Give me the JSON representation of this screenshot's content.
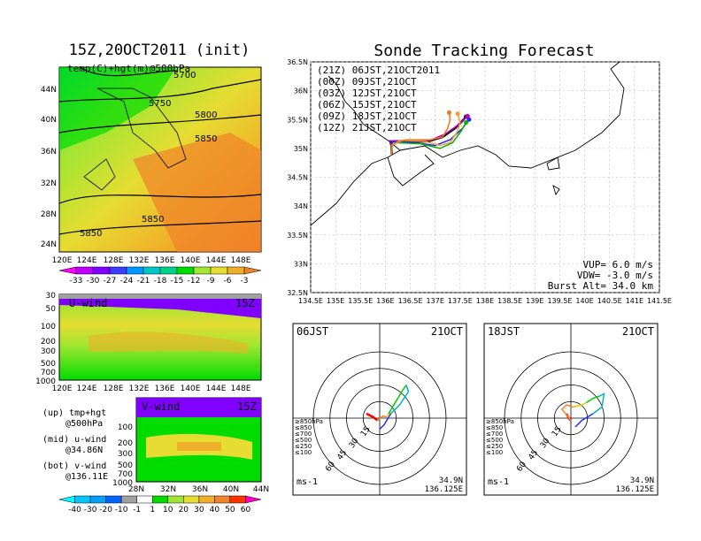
{
  "left": {
    "title": "15Z,20OCT2011 (init)",
    "map_label": "temp(C)+hgt(m)@500hPa",
    "lat_ticks": [
      "44N",
      "40N",
      "36N",
      "32N",
      "28N",
      "24N"
    ],
    "lon_ticks": [
      "120E",
      "124E",
      "128E",
      "132E",
      "136E",
      "140E",
      "144E",
      "148E"
    ],
    "contour_labels": [
      "5700",
      "5750",
      "5800",
      "5850",
      "5850",
      "5850"
    ],
    "temp_colorbar": [
      "-33",
      "-30",
      "-27",
      "-24",
      "-21",
      "-18",
      "-15",
      "-12",
      "-9",
      "-6",
      "-3"
    ],
    "temp_colors": [
      "#ff00ff",
      "#c000ff",
      "#8000ff",
      "#3c3cff",
      "#0096ff",
      "#00c8c8",
      "#00d28c",
      "#00dc00",
      "#a0e632",
      "#e6dc32",
      "#f0af28",
      "#f08228"
    ],
    "u_label": "U-wind",
    "u_time": "15Z",
    "v_label": "V-wind",
    "v_time": "15Z",
    "p_ticks": [
      "30",
      "50",
      "100",
      "200",
      "300",
      "500",
      "700",
      "1000"
    ],
    "v_lat_ticks": [
      "28N",
      "32N",
      "36N",
      "40N",
      "44N"
    ],
    "wind_colorbar": [
      "-40",
      "-30",
      "-20",
      "-10",
      "-1",
      "1",
      "10",
      "20",
      "30",
      "40",
      "50",
      "60"
    ],
    "wind_colors": [
      "#00ffff",
      "#00c8ff",
      "#00a0ff",
      "#0064ff",
      "#a0a0a0",
      "#ffffff",
      "#00dc00",
      "#a0e632",
      "#e6dc32",
      "#f0af28",
      "#f08228",
      "#ff3200",
      "#ff00c8"
    ],
    "legend": [
      [
        "(up) tmp+hgt",
        "@500hPa"
      ],
      [
        "(mid) u-wind",
        "@34.86N"
      ],
      [
        "(bot) v-wind",
        "@136.11E"
      ]
    ]
  },
  "right": {
    "title": "Sonde Tracking Forecast",
    "lat_ticks": [
      "36.5N",
      "36N",
      "35.5N",
      "35N",
      "34.5N",
      "34N",
      "33.5N",
      "33N",
      "32.5N"
    ],
    "lon_ticks": [
      "134.5E",
      "135E",
      "135.5E",
      "136E",
      "136.5E",
      "137E",
      "137.5E",
      "138E",
      "138.5E",
      "139E",
      "139.5E",
      "140E",
      "140.5E",
      "141E",
      "141.5E"
    ],
    "launches": [
      {
        "label": "(21Z)  06JST,21OCT2011",
        "color": "#000000"
      },
      {
        "label": "(00Z)  09JST,21OCT",
        "color": "#c000c0"
      },
      {
        "label": "(03Z)  12JST,21OCT",
        "color": "#2828ff"
      },
      {
        "label": "(06Z)  15JST,21OCT",
        "color": "#00b400"
      },
      {
        "label": "(09Z)  18JST,21OCT",
        "color": "#f0a030"
      },
      {
        "label": "(12Z)  21JST,21OCT",
        "color": "#f07820"
      }
    ],
    "params": [
      "VUP=  6.0  m/s",
      "VDW= -3.0  m/s",
      "Burst Alt=  34.0  km"
    ],
    "launch_site": {
      "lon": 136.125,
      "lat": 34.9
    }
  },
  "chart_data": [
    {
      "type": "line",
      "title": "Sonde Tracking Forecast",
      "xlabel": "",
      "ylabel": "",
      "xlim": [
        134.5,
        141.5
      ],
      "ylim": [
        32.5,
        36.5
      ],
      "x_unit": "degE",
      "y_unit": "degN",
      "series": [
        {
          "name": "(21Z) 06JST,21OCT2011",
          "points": [
            [
              136.13,
              34.9
            ],
            [
              136.12,
              35.05
            ],
            [
              136.1,
              35.12
            ],
            [
              136.45,
              35.12
            ],
            [
              136.85,
              35.12
            ],
            [
              137.15,
              35.2
            ],
            [
              137.4,
              35.35
            ],
            [
              137.55,
              35.48
            ],
            [
              137.62,
              35.55
            ]
          ]
        },
        {
          "name": "(00Z) 09JST,21OCT",
          "points": [
            [
              136.13,
              34.9
            ],
            [
              136.12,
              35.06
            ],
            [
              136.1,
              35.13
            ],
            [
              136.5,
              35.14
            ],
            [
              136.9,
              35.14
            ],
            [
              137.2,
              35.25
            ],
            [
              137.45,
              35.4
            ],
            [
              137.6,
              35.52
            ],
            [
              137.65,
              35.56
            ]
          ]
        },
        {
          "name": "(03Z) 12JST,21OCT",
          "points": [
            [
              136.13,
              34.9
            ],
            [
              136.12,
              35.05
            ],
            [
              136.15,
              35.12
            ],
            [
              136.6,
              35.1
            ],
            [
              137.0,
              35.05
            ],
            [
              137.3,
              35.15
            ],
            [
              137.55,
              35.35
            ],
            [
              137.68,
              35.5
            ]
          ]
        },
        {
          "name": "(06Z) 15JST,21OCT",
          "points": [
            [
              136.13,
              34.9
            ],
            [
              136.13,
              35.04
            ],
            [
              136.2,
              35.1
            ],
            [
              136.7,
              35.08
            ],
            [
              137.1,
              35.0
            ],
            [
              137.35,
              35.1
            ],
            [
              137.52,
              35.3
            ],
            [
              137.62,
              35.45
            ]
          ]
        },
        {
          "name": "(09Z) 18JST,21OCT",
          "points": [
            [
              136.13,
              34.9
            ],
            [
              136.12,
              35.05
            ],
            [
              136.3,
              35.14
            ],
            [
              136.8,
              35.12
            ],
            [
              137.1,
              35.05
            ],
            [
              137.3,
              35.1
            ],
            [
              137.45,
              35.3
            ],
            [
              137.5,
              35.45
            ],
            [
              137.45,
              35.6
            ]
          ]
        },
        {
          "name": "(12Z) 21JST,21OCT",
          "points": [
            [
              136.13,
              34.9
            ],
            [
              136.12,
              35.06
            ],
            [
              136.4,
              35.15
            ],
            [
              136.9,
              35.15
            ],
            [
              137.15,
              35.2
            ],
            [
              137.25,
              35.35
            ],
            [
              137.3,
              35.5
            ],
            [
              137.28,
              35.62
            ]
          ]
        }
      ]
    },
    {
      "type": "line",
      "title": "06JST 21OCT",
      "xlabel": "",
      "ylabel": "",
      "x_unit": "ms-1",
      "y_unit": "ms-1",
      "rings": [
        "15",
        "30",
        "45",
        "60"
      ],
      "center": {
        "lat": "34.9N",
        "lon": "136.125E"
      },
      "unit_label": "ms-1",
      "levels": [
        "≥850hPa",
        "≤850",
        "≤700",
        "≤500",
        "≤250",
        "≤100"
      ],
      "level_colors": [
        "#ff0000",
        "#f08228",
        "#e6c800",
        "#00c800",
        "#00b4c8",
        "#2828ff"
      ],
      "series": [
        {
          "name": "≥850hPa",
          "points": [
            [
              -12,
              4
            ],
            [
              -6,
              1
            ],
            [
              -2,
              -2
            ]
          ]
        },
        {
          "name": "≤850",
          "points": [
            [
              -2,
              -2
            ],
            [
              3,
              2
            ],
            [
              6,
              1
            ]
          ]
        },
        {
          "name": "≤700",
          "points": [
            [
              6,
              1
            ],
            [
              10,
              6
            ],
            [
              8,
              4
            ]
          ]
        },
        {
          "name": "≤500",
          "points": [
            [
              8,
              4
            ],
            [
              14,
              14
            ],
            [
              20,
              24
            ],
            [
              24,
              30
            ]
          ]
        },
        {
          "name": "≤250",
          "points": [
            [
              24,
              30
            ],
            [
              26,
              24
            ],
            [
              18,
              12
            ],
            [
              10,
              4
            ]
          ]
        },
        {
          "name": "≤100",
          "points": [
            [
              10,
              4
            ],
            [
              4,
              -6
            ],
            [
              0,
              -10
            ]
          ]
        }
      ]
    },
    {
      "type": "line",
      "title": "18JST 21OCT",
      "xlabel": "",
      "ylabel": "",
      "x_unit": "ms-1",
      "y_unit": "ms-1",
      "rings": [
        "15",
        "30",
        "45",
        "60"
      ],
      "center": {
        "lat": "34.9N",
        "lon": "136.125E"
      },
      "unit_label": "ms-1",
      "levels": [
        "≥850hPa",
        "≤850",
        "≤700",
        "≤500",
        "≤250",
        "≤100"
      ],
      "level_colors": [
        "#ff0000",
        "#f08228",
        "#e6c800",
        "#00c800",
        "#00b4c8",
        "#2828ff"
      ],
      "series": [
        {
          "name": "≥850hPa",
          "points": [
            [
              -4,
              4
            ],
            [
              -2,
              0
            ],
            [
              0,
              -2
            ]
          ]
        },
        {
          "name": "≤850",
          "points": [
            [
              0,
              -2
            ],
            [
              -8,
              8
            ],
            [
              -4,
              12
            ],
            [
              2,
              10
            ]
          ]
        },
        {
          "name": "≤700",
          "points": [
            [
              2,
              10
            ],
            [
              10,
              12
            ],
            [
              14,
              14
            ]
          ]
        },
        {
          "name": "≤500",
          "points": [
            [
              14,
              14
            ],
            [
              20,
              18
            ],
            [
              26,
              20
            ]
          ]
        },
        {
          "name": "≤250",
          "points": [
            [
              26,
              20
            ],
            [
              30,
              22
            ],
            [
              28,
              10
            ],
            [
              20,
              4
            ]
          ]
        },
        {
          "name": "≤100",
          "points": [
            [
              20,
              4
            ],
            [
              10,
              -2
            ],
            [
              4,
              -8
            ]
          ]
        }
      ]
    }
  ]
}
